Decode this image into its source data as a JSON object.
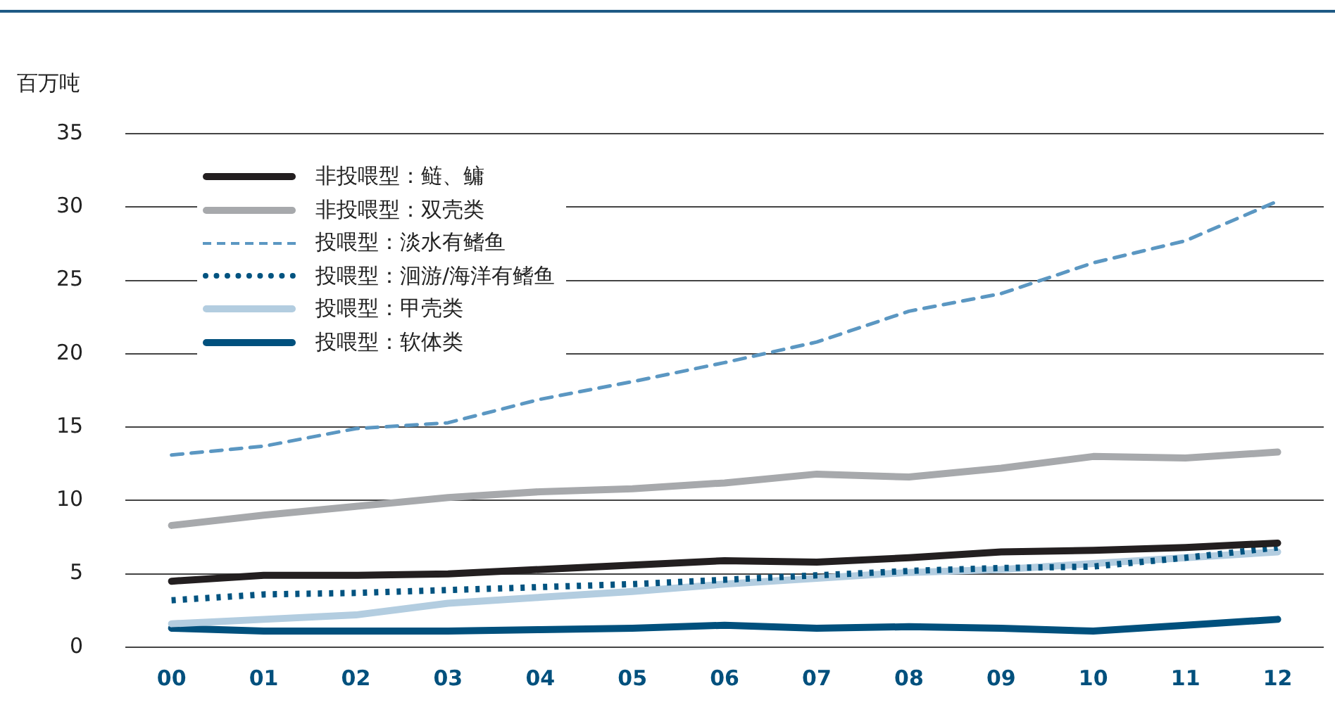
{
  "chart_data": {
    "type": "line",
    "ylabel": "百万吨",
    "categories": [
      "00",
      "01",
      "02",
      "03",
      "04",
      "05",
      "06",
      "07",
      "08",
      "09",
      "10",
      "11",
      "12"
    ],
    "series": [
      {
        "name": "非投喂型：鲢、鳙",
        "color": "#231f20",
        "line_style": "solid",
        "values": [
          4.5,
          4.9,
          4.9,
          5.0,
          5.3,
          5.6,
          5.9,
          5.8,
          6.1,
          6.5,
          6.6,
          6.8,
          7.1
        ]
      },
      {
        "name": "非投喂型：双壳类",
        "color": "#a7a9ac",
        "line_style": "solid",
        "values": [
          8.3,
          9.0,
          9.6,
          10.2,
          10.6,
          10.8,
          11.2,
          11.8,
          11.6,
          12.2,
          13.0,
          12.9,
          13.3
        ]
      },
      {
        "name": "投喂型：淡水有鳍鱼",
        "color": "#5b97c2",
        "line_style": "dashed",
        "values": [
          13.1,
          13.7,
          14.9,
          15.3,
          16.9,
          18.1,
          19.4,
          20.8,
          22.9,
          24.1,
          26.2,
          27.7,
          30.4
        ]
      },
      {
        "name": "投喂型：洄游/海洋有鳍鱼",
        "color": "#005380",
        "line_style": "dotted",
        "values": [
          3.2,
          3.6,
          3.7,
          3.9,
          4.1,
          4.3,
          4.6,
          4.9,
          5.2,
          5.4,
          5.5,
          6.1,
          6.8
        ]
      },
      {
        "name": "投喂型：甲壳类",
        "color": "#b3cde0",
        "line_style": "solid",
        "values": [
          1.6,
          1.9,
          2.2,
          3.0,
          3.4,
          3.8,
          4.3,
          4.7,
          5.1,
          5.3,
          5.7,
          6.1,
          6.5
        ]
      },
      {
        "name": "投喂型：软体类",
        "color": "#00507d",
        "line_style": "solid",
        "values": [
          1.3,
          1.1,
          1.1,
          1.1,
          1.2,
          1.3,
          1.5,
          1.3,
          1.4,
          1.3,
          1.1,
          1.5,
          1.9
        ]
      }
    ],
    "ylim": [
      0,
      35
    ],
    "yticks": [
      0,
      5,
      10,
      15,
      20,
      25,
      30,
      35
    ],
    "grid": "y",
    "legend": "top left",
    "marker": "none"
  }
}
